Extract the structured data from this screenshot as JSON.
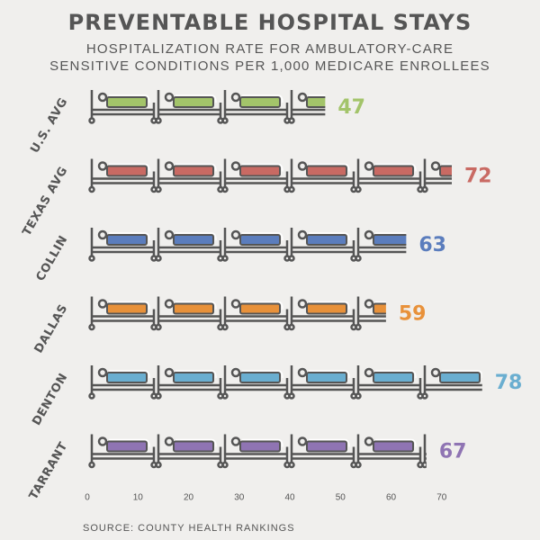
{
  "chart_data": {
    "type": "pictograph",
    "title": "PREVENTABLE HOSPITAL STAYS",
    "subtitle": [
      "HOSPITALIZATION RATE FOR AMBULATORY-CARE",
      "SENSITIVE CONDITIONS PER 1,000 MEDICARE ENROLLEES"
    ],
    "source": "SOURCE: COUNTY HEALTH RANKINGS",
    "categories": [
      "U.S. AVG",
      "TEXAS AVG",
      "COLLIN",
      "DALLAS",
      "DENTON",
      "TARRANT"
    ],
    "values": [
      47,
      72,
      63,
      59,
      78,
      67
    ],
    "colors": [
      "#a3c46a",
      "#c96a63",
      "#5b7dbd",
      "#e8913a",
      "#6aaed0",
      "#8f74b3"
    ],
    "xlim": [
      0,
      80
    ],
    "xticks": [
      0,
      10,
      20,
      30,
      40,
      50,
      60,
      70
    ]
  }
}
